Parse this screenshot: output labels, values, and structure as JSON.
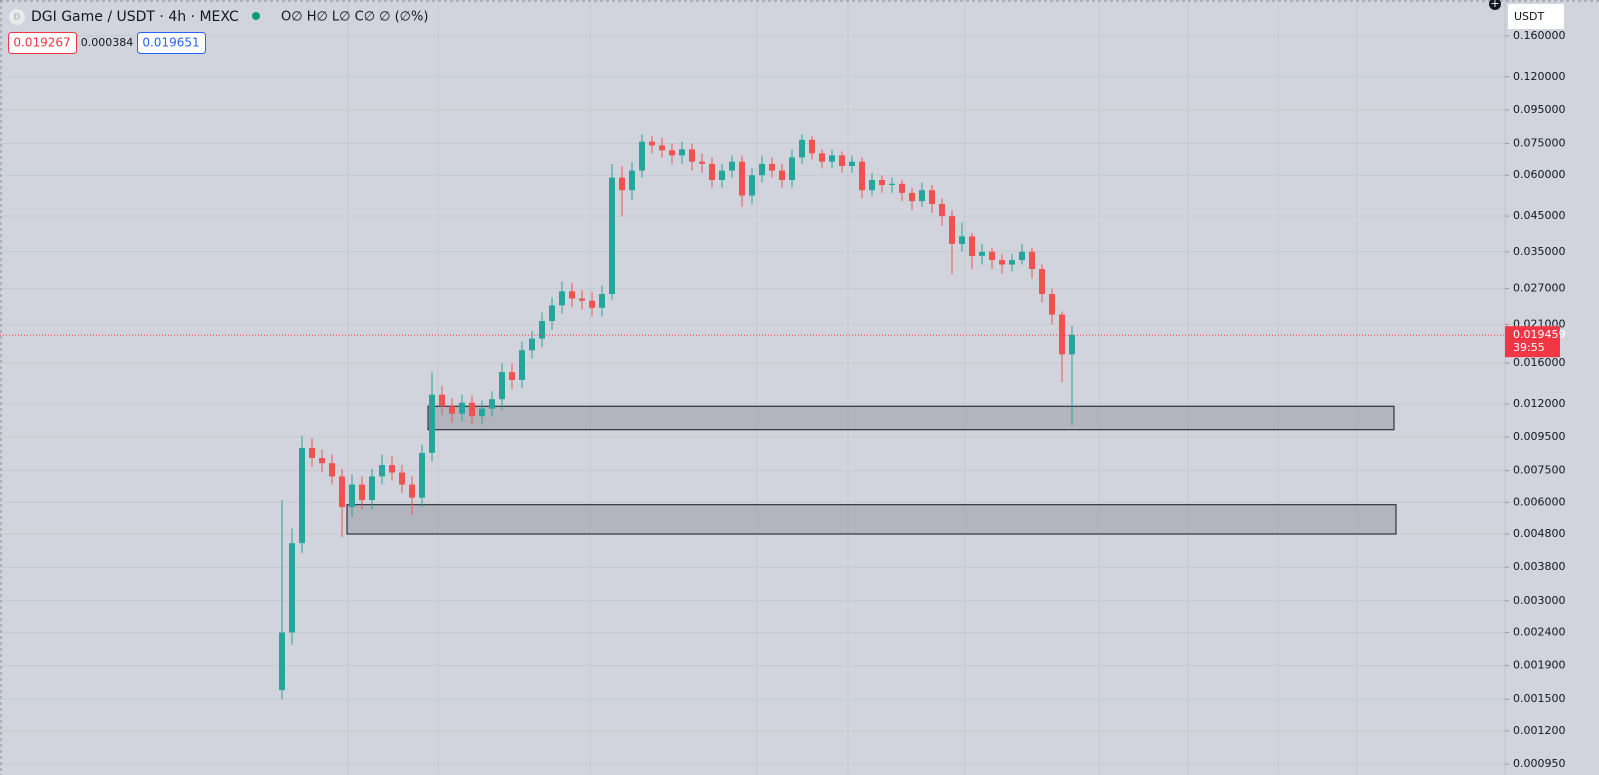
{
  "toolbar": {
    "sell_price": "0.019267",
    "spread": "0.000384",
    "buy_price": "0.019651",
    "currency": "USDT"
  },
  "chart_data": {
    "type": "candlestick",
    "title": "DGI Game / USDT · 4h · MEXC",
    "ohlc_legend": "O∅ H∅ L∅ C∅ ∅ (∅%)",
    "up_color": "#26a69a",
    "down_color": "#ef5350",
    "log_scale": true,
    "grid": true,
    "ylim": [
      0.00088,
      0.206
    ],
    "yticks": [
      {
        "value": 0.16,
        "label": "0.160000"
      },
      {
        "value": 0.12,
        "label": "0.120000"
      },
      {
        "value": 0.095,
        "label": "0.095000"
      },
      {
        "value": 0.075,
        "label": "0.075000"
      },
      {
        "value": 0.06,
        "label": "0.060000"
      },
      {
        "value": 0.045,
        "label": "0.045000"
      },
      {
        "value": 0.035,
        "label": "0.035000"
      },
      {
        "value": 0.027,
        "label": "0.027000"
      },
      {
        "value": 0.021,
        "label": "0.021000"
      },
      {
        "value": 0.016,
        "label": "0.016000"
      },
      {
        "value": 0.012,
        "label": "0.012000"
      },
      {
        "value": 0.0095,
        "label": "0.009500"
      },
      {
        "value": 0.0075,
        "label": "0.007500"
      },
      {
        "value": 0.006,
        "label": "0.006000"
      },
      {
        "value": 0.0048,
        "label": "0.004800"
      },
      {
        "value": 0.0038,
        "label": "0.003800"
      },
      {
        "value": 0.003,
        "label": "0.003000"
      },
      {
        "value": 0.0024,
        "label": "0.002400"
      },
      {
        "value": 0.0019,
        "label": "0.001900"
      },
      {
        "value": 0.0015,
        "label": "0.001500"
      },
      {
        "value": 0.0012,
        "label": "0.001200"
      },
      {
        "value": 0.00095,
        "label": "0.000950"
      }
    ],
    "last_price": 0.019459,
    "countdown": "39:55",
    "last_price_color": "#f23645",
    "zones": [
      {
        "top": 0.0118,
        "bottom": 0.01
      },
      {
        "top": 0.0059,
        "bottom": 0.0048
      }
    ],
    "ohlc": [
      [
        0.0016,
        0.0061,
        0.0015,
        0.0024
      ],
      [
        0.0024,
        0.005,
        0.0022,
        0.0045
      ],
      [
        0.0045,
        0.0096,
        0.0042,
        0.0088
      ],
      [
        0.0088,
        0.0094,
        0.0077,
        0.0082
      ],
      [
        0.0082,
        0.0087,
        0.0074,
        0.0079
      ],
      [
        0.0079,
        0.0084,
        0.0068,
        0.0072
      ],
      [
        0.0072,
        0.0076,
        0.0047,
        0.0058
      ],
      [
        0.0058,
        0.0073,
        0.0054,
        0.0068
      ],
      [
        0.0068,
        0.0072,
        0.0057,
        0.0061
      ],
      [
        0.0061,
        0.0076,
        0.0057,
        0.0072
      ],
      [
        0.0072,
        0.0084,
        0.0068,
        0.0078
      ],
      [
        0.0078,
        0.0083,
        0.007,
        0.0074
      ],
      [
        0.0074,
        0.0078,
        0.0064,
        0.0068
      ],
      [
        0.0068,
        0.0072,
        0.0055,
        0.0062
      ],
      [
        0.0062,
        0.009,
        0.0058,
        0.0085
      ],
      [
        0.0085,
        0.015,
        0.008,
        0.0128
      ],
      [
        0.0128,
        0.0136,
        0.0111,
        0.0118
      ],
      [
        0.0118,
        0.0125,
        0.0105,
        0.0112
      ],
      [
        0.0112,
        0.0128,
        0.0106,
        0.0121
      ],
      [
        0.0121,
        0.0127,
        0.0104,
        0.011
      ],
      [
        0.011,
        0.0123,
        0.0104,
        0.0116
      ],
      [
        0.0116,
        0.0131,
        0.011,
        0.0124
      ],
      [
        0.0124,
        0.016,
        0.0115,
        0.015
      ],
      [
        0.015,
        0.0159,
        0.0133,
        0.0142
      ],
      [
        0.0142,
        0.0186,
        0.0134,
        0.0175
      ],
      [
        0.0175,
        0.0201,
        0.0165,
        0.019
      ],
      [
        0.019,
        0.0228,
        0.0179,
        0.0215
      ],
      [
        0.0215,
        0.0254,
        0.0202,
        0.024
      ],
      [
        0.024,
        0.0284,
        0.0226,
        0.0265
      ],
      [
        0.0265,
        0.0281,
        0.0237,
        0.0252
      ],
      [
        0.0252,
        0.0267,
        0.0233,
        0.0248
      ],
      [
        0.0248,
        0.0263,
        0.0222,
        0.0236
      ],
      [
        0.0236,
        0.0276,
        0.0222,
        0.026
      ],
      [
        0.026,
        0.065,
        0.025,
        0.059
      ],
      [
        0.059,
        0.064,
        0.045,
        0.054
      ],
      [
        0.054,
        0.066,
        0.0505,
        0.062
      ],
      [
        0.062,
        0.08,
        0.059,
        0.076
      ],
      [
        0.076,
        0.079,
        0.07,
        0.074
      ],
      [
        0.074,
        0.078,
        0.068,
        0.0715
      ],
      [
        0.0715,
        0.075,
        0.065,
        0.069
      ],
      [
        0.069,
        0.076,
        0.065,
        0.072
      ],
      [
        0.072,
        0.075,
        0.062,
        0.066
      ],
      [
        0.066,
        0.07,
        0.061,
        0.065
      ],
      [
        0.065,
        0.068,
        0.055,
        0.058
      ],
      [
        0.058,
        0.065,
        0.055,
        0.062
      ],
      [
        0.062,
        0.069,
        0.059,
        0.066
      ],
      [
        0.066,
        0.069,
        0.048,
        0.052
      ],
      [
        0.052,
        0.063,
        0.049,
        0.06
      ],
      [
        0.06,
        0.069,
        0.057,
        0.065
      ],
      [
        0.065,
        0.068,
        0.059,
        0.062
      ],
      [
        0.062,
        0.065,
        0.055,
        0.058
      ],
      [
        0.058,
        0.072,
        0.055,
        0.068
      ],
      [
        0.068,
        0.08,
        0.065,
        0.077
      ],
      [
        0.077,
        0.079,
        0.067,
        0.07
      ],
      [
        0.07,
        0.072,
        0.063,
        0.066
      ],
      [
        0.066,
        0.072,
        0.063,
        0.069
      ],
      [
        0.069,
        0.071,
        0.061,
        0.064
      ],
      [
        0.064,
        0.069,
        0.061,
        0.066
      ],
      [
        0.066,
        0.068,
        0.051,
        0.054
      ],
      [
        0.054,
        0.061,
        0.052,
        0.058
      ],
      [
        0.058,
        0.06,
        0.053,
        0.056
      ],
      [
        0.056,
        0.059,
        0.053,
        0.0565
      ],
      [
        0.0565,
        0.058,
        0.05,
        0.053
      ],
      [
        0.053,
        0.055,
        0.047,
        0.05
      ],
      [
        0.05,
        0.057,
        0.048,
        0.054
      ],
      [
        0.054,
        0.056,
        0.046,
        0.049
      ],
      [
        0.049,
        0.051,
        0.042,
        0.045
      ],
      [
        0.045,
        0.047,
        0.03,
        0.037
      ],
      [
        0.037,
        0.043,
        0.035,
        0.039
      ],
      [
        0.039,
        0.04,
        0.031,
        0.034
      ],
      [
        0.034,
        0.037,
        0.032,
        0.035
      ],
      [
        0.035,
        0.036,
        0.031,
        0.033
      ],
      [
        0.033,
        0.0345,
        0.03,
        0.032
      ],
      [
        0.032,
        0.0345,
        0.0305,
        0.033
      ],
      [
        0.033,
        0.037,
        0.032,
        0.035
      ],
      [
        0.035,
        0.036,
        0.029,
        0.031
      ],
      [
        0.031,
        0.032,
        0.0245,
        0.026
      ],
      [
        0.026,
        0.027,
        0.021,
        0.0225
      ],
      [
        0.0225,
        0.023,
        0.014,
        0.017
      ],
      [
        0.017,
        0.0208,
        0.0103,
        0.0195
      ]
    ]
  }
}
